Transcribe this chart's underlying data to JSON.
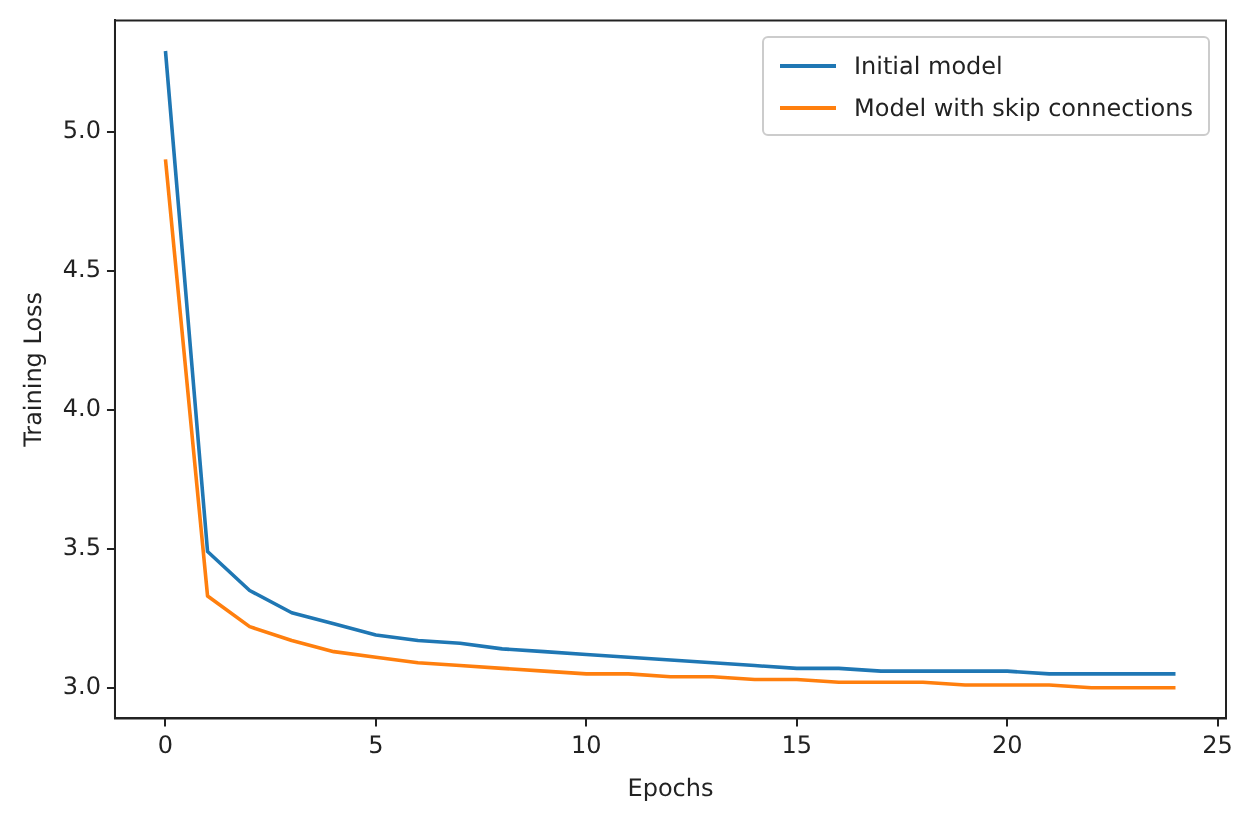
{
  "chart_data": {
    "type": "line",
    "xlabel": "Epochs",
    "ylabel": "Training Loss",
    "x": [
      0,
      1,
      2,
      3,
      4,
      5,
      6,
      7,
      8,
      9,
      10,
      11,
      12,
      13,
      14,
      15,
      16,
      17,
      18,
      19,
      20,
      21,
      22,
      23,
      24
    ],
    "series": [
      {
        "name": "Initial model",
        "color": "#1f77b4",
        "values": [
          5.29,
          3.49,
          3.35,
          3.27,
          3.23,
          3.19,
          3.17,
          3.16,
          3.14,
          3.13,
          3.12,
          3.11,
          3.1,
          3.09,
          3.08,
          3.07,
          3.07,
          3.06,
          3.06,
          3.06,
          3.06,
          3.05,
          3.05,
          3.05,
          3.05
        ]
      },
      {
        "name": "Model with skip connections",
        "color": "#ff7f0e",
        "values": [
          4.9,
          3.33,
          3.22,
          3.17,
          3.13,
          3.11,
          3.09,
          3.08,
          3.07,
          3.06,
          3.05,
          3.05,
          3.04,
          3.04,
          3.03,
          3.03,
          3.02,
          3.02,
          3.02,
          3.01,
          3.01,
          3.01,
          3.0,
          3.0,
          3.0
        ]
      }
    ],
    "xlim": [
      -1.2,
      25.2
    ],
    "xticks": [
      0,
      5,
      10,
      15,
      20,
      25
    ],
    "ylim": [
      2.89,
      5.4
    ],
    "yticks": [
      {
        "value": 3,
        "label": "3.0"
      },
      {
        "value": 3.5,
        "label": "3.5"
      },
      {
        "value": 4,
        "label": "4.0"
      },
      {
        "value": 4.5,
        "label": "4.5"
      },
      {
        "value": 5,
        "label": "5.0"
      }
    ],
    "grid": false,
    "legend": "top right",
    "marker": "none",
    "line_style": "solid"
  }
}
